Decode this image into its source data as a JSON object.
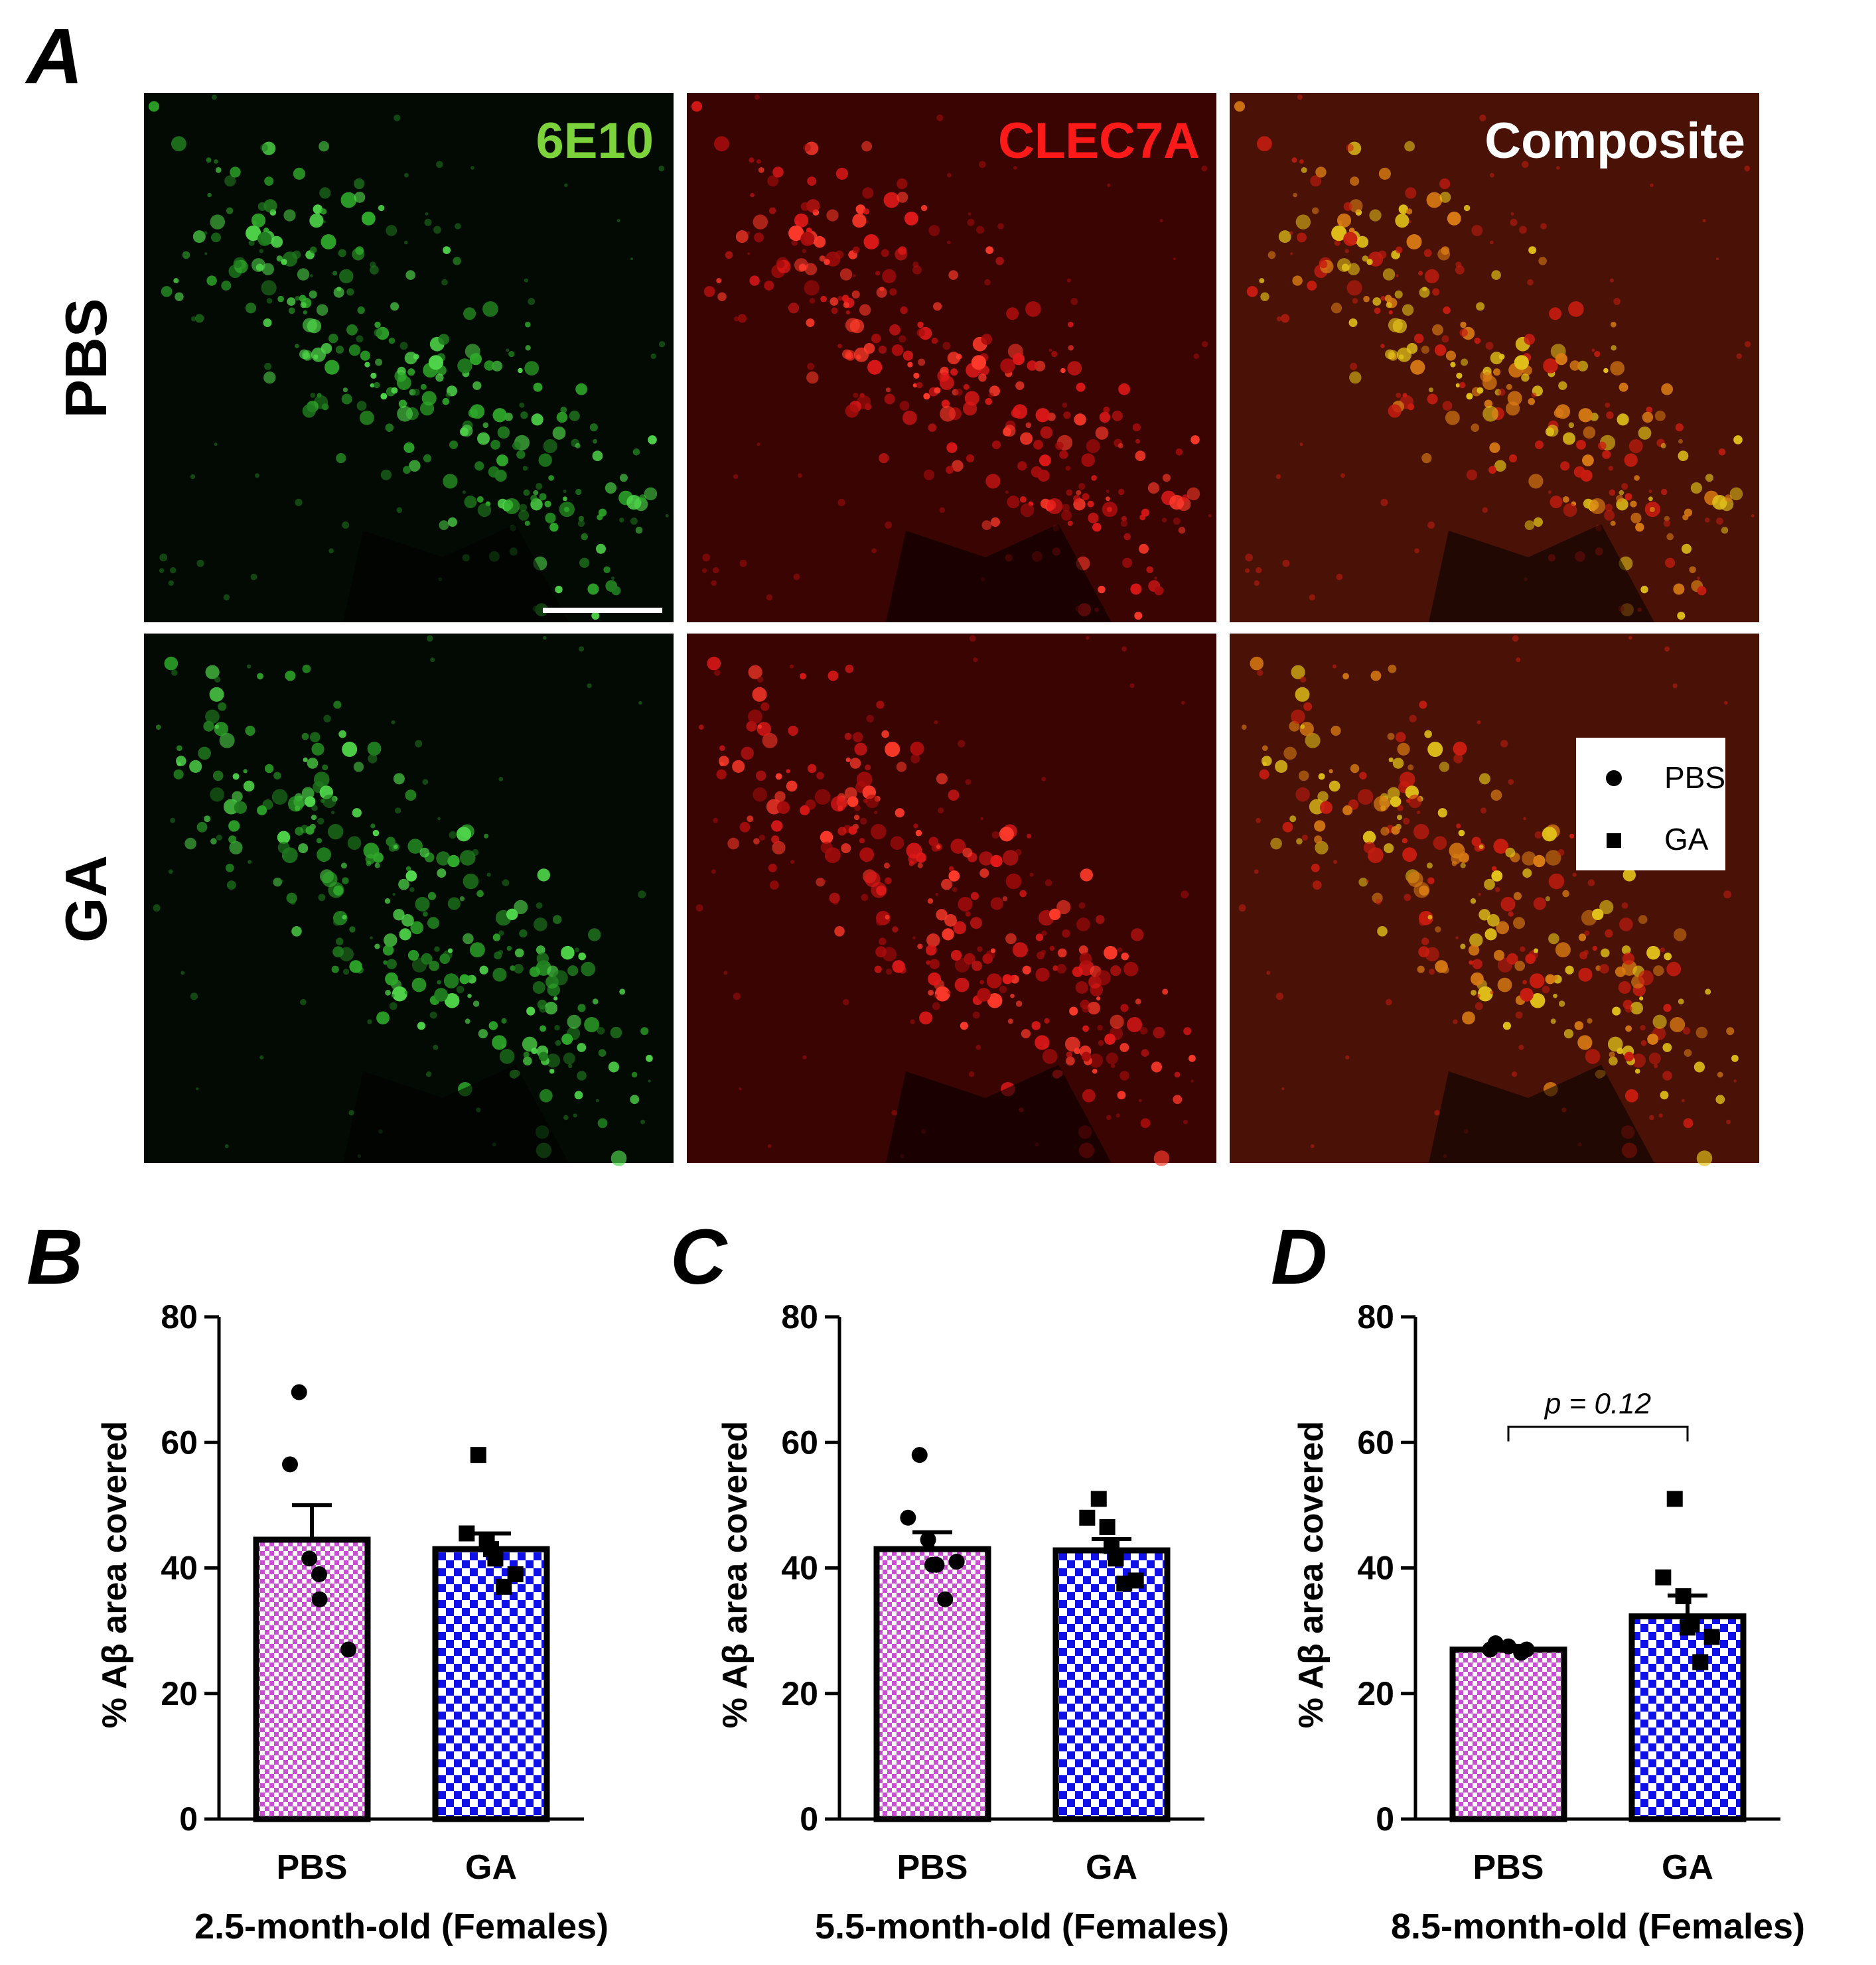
{
  "panel_a": {
    "letter": "A",
    "channels": [
      "6E10",
      "CLEC7A",
      "Composite"
    ],
    "channel_colors": [
      "#7CD33C",
      "#FF1A1A",
      "#FFFFFF"
    ],
    "rows": [
      "PBS",
      "GA"
    ],
    "legend": [
      {
        "label": "PBS",
        "marker": "circle"
      },
      {
        "label": "GA",
        "marker": "square"
      }
    ]
  },
  "chart_data": [
    {
      "panel": "B",
      "type": "bar",
      "title": "",
      "xlabel": "2.5-month-old (Females)",
      "ylabel": "% Aβ area covered",
      "ylim": [
        0,
        80
      ],
      "yticks": [
        0,
        20,
        40,
        60,
        80
      ],
      "categories": [
        "PBS",
        "GA"
      ],
      "values": [
        44.5,
        43.0
      ],
      "sem": [
        5.5,
        2.5
      ],
      "points": [
        [
          68,
          56.5,
          41.5,
          39,
          35,
          27
        ],
        [
          58,
          45.5,
          44.5,
          43,
          41.5,
          39,
          37
        ]
      ],
      "annotation": ""
    },
    {
      "panel": "C",
      "type": "bar",
      "title": "",
      "xlabel": "5.5-month-old (Females)",
      "ylabel": "% Aβ area covered",
      "ylim": [
        0,
        80
      ],
      "yticks": [
        0,
        20,
        40,
        60,
        80
      ],
      "categories": [
        "PBS",
        "GA"
      ],
      "values": [
        43.0,
        42.8
      ],
      "sem": [
        2.7,
        1.8
      ],
      "points": [
        [
          58,
          48,
          44.5,
          40.5,
          40.5,
          41,
          35
        ],
        [
          51,
          48,
          46.5,
          43.5,
          41.5,
          38,
          37.5
        ]
      ],
      "annotation": ""
    },
    {
      "panel": "D",
      "type": "bar",
      "title": "",
      "xlabel": "8.5-month-old (Females)",
      "ylabel": "% Aβ area covered",
      "ylim": [
        0,
        80
      ],
      "yticks": [
        0,
        20,
        40,
        60,
        80
      ],
      "categories": [
        "PBS",
        "GA"
      ],
      "values": [
        27.0,
        32.3
      ],
      "sem": [
        0.6,
        3.3
      ],
      "points": [
        [
          28,
          27,
          27.5,
          27,
          26.5
        ],
        [
          51,
          38.5,
          35.5,
          30.5,
          31,
          29,
          25
        ]
      ],
      "annotation": "p = 0.12"
    }
  ],
  "colors": {
    "pbs_bar": "#C84FD2",
    "ga_bar": "#1010E8"
  }
}
